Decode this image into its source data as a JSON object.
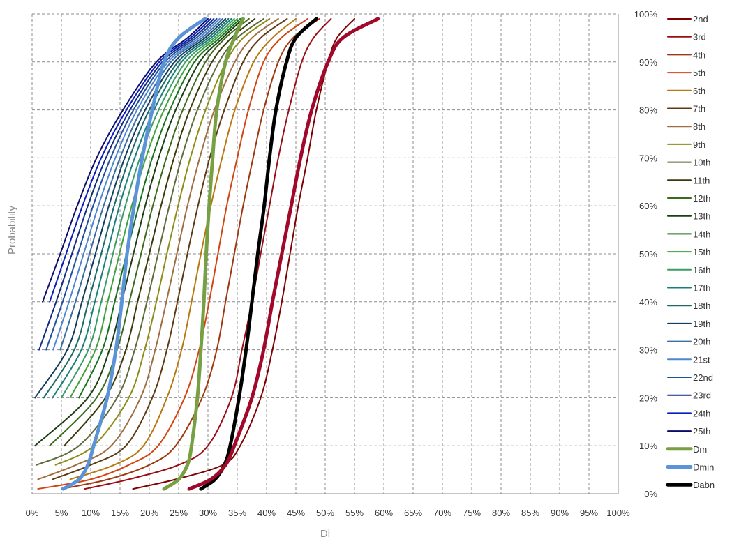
{
  "chart_data": {
    "type": "line",
    "title": "",
    "xlabel": "Di",
    "ylabel": "Probability",
    "xlim": [
      0,
      100
    ],
    "ylim": [
      0,
      100
    ],
    "x_unit": "%",
    "y_unit": "%",
    "x_ticks": [
      "0%",
      "5%",
      "10%",
      "15%",
      "20%",
      "25%",
      "30%",
      "35%",
      "40%",
      "45%",
      "50%",
      "55%",
      "60%",
      "65%",
      "70%",
      "75%",
      "80%",
      "85%",
      "90%",
      "95%",
      "100%"
    ],
    "y_ticks": [
      "0%",
      "10%",
      "20%",
      "30%",
      "40%",
      "50%",
      "60%",
      "70%",
      "80%",
      "90%",
      "100%"
    ],
    "y_axis_side": "right",
    "grid": true,
    "legend_position": "right",
    "y_points": [
      1,
      3,
      6,
      10,
      20,
      30,
      40,
      50,
      60,
      70,
      80,
      90,
      95,
      99
    ],
    "series": [
      {
        "name": "2nd",
        "color": "#7f0000",
        "width": 2,
        "x": [
          17.2,
          24.5,
          32.5,
          35.5,
          39.0,
          41.0,
          42.6,
          44.0,
          45.4,
          47.0,
          48.5,
          50.5,
          52.0,
          55.0
        ]
      },
      {
        "name": "3rd",
        "color": "#9a0e16",
        "width": 2,
        "x": [
          9.0,
          16.5,
          25.0,
          30.0,
          34.0,
          35.8,
          37.5,
          39.0,
          40.5,
          42.0,
          43.8,
          46.0,
          48.0,
          51.0
        ]
      },
      {
        "name": "4th",
        "color": "#a0380f",
        "width": 2,
        "x": [
          5.0,
          13.0,
          20.0,
          24.5,
          29.0,
          31.5,
          33.0,
          34.5,
          36.0,
          37.7,
          39.5,
          42.0,
          44.5,
          49.0
        ]
      },
      {
        "name": "5th",
        "color": "#d24412",
        "width": 2,
        "x": [
          1.0,
          10.0,
          16.5,
          21.5,
          26.0,
          28.5,
          30.2,
          31.7,
          33.2,
          35.0,
          36.9,
          39.5,
          42.5,
          47.0
        ]
      },
      {
        "name": "6th",
        "color": "#b9770f",
        "width": 2,
        "x": [
          0.0,
          6.5,
          14.0,
          19.0,
          23.0,
          25.5,
          27.2,
          28.8,
          30.5,
          32.4,
          34.6,
          37.8,
          41.0,
          45.0
        ]
      },
      {
        "name": "7th",
        "color": "#5e3a14",
        "width": 2,
        "x": [
          0.0,
          3.5,
          10.0,
          16.0,
          20.5,
          23.0,
          24.8,
          26.5,
          28.3,
          30.3,
          32.8,
          36.0,
          39.0,
          43.5
        ]
      },
      {
        "name": "8th",
        "color": "#a06d3f",
        "width": 2,
        "x": [
          0.0,
          1.0,
          7.5,
          13.5,
          18.5,
          21.0,
          22.9,
          24.7,
          26.5,
          28.6,
          31.1,
          34.6,
          37.5,
          42.0
        ]
      },
      {
        "name": "9th",
        "color": "#8c8c16",
        "width": 2,
        "x": [
          0.0,
          0.0,
          4.0,
          10.5,
          16.5,
          19.2,
          21.2,
          23.0,
          24.9,
          27.0,
          29.6,
          33.1,
          36.0,
          40.5
        ]
      },
      {
        "name": "10th",
        "color": "#5f6b3a",
        "width": 2,
        "x": [
          0.0,
          0.0,
          0.8,
          8.0,
          14.5,
          17.5,
          19.6,
          21.5,
          23.4,
          25.5,
          28.2,
          31.9,
          35.0,
          39.5
        ]
      },
      {
        "name": "11th",
        "color": "#3b3a0a",
        "width": 2,
        "x": [
          0.0,
          0.0,
          0.0,
          5.5,
          12.5,
          16.0,
          18.0,
          20.0,
          22.0,
          24.2,
          26.9,
          30.7,
          34.0,
          38.0
        ]
      },
      {
        "name": "12th",
        "color": "#3d6b1b",
        "width": 2,
        "x": [
          0.0,
          0.0,
          0.0,
          3.0,
          11.0,
          14.5,
          16.6,
          18.6,
          20.6,
          22.9,
          25.7,
          29.6,
          33.0,
          37.0
        ]
      },
      {
        "name": "13th",
        "color": "#1e3d12",
        "width": 2,
        "x": [
          0.0,
          0.0,
          0.0,
          0.5,
          9.5,
          13.2,
          15.3,
          17.3,
          19.3,
          21.6,
          24.5,
          28.6,
          32.5,
          36.0
        ]
      },
      {
        "name": "14th",
        "color": "#16721c",
        "width": 2,
        "x": [
          0.0,
          0.0,
          0.0,
          0.0,
          8.0,
          12.0,
          14.1,
          16.1,
          18.2,
          20.5,
          23.5,
          27.7,
          32.0,
          35.5
        ]
      },
      {
        "name": "15th",
        "color": "#41a13b",
        "width": 2,
        "x": [
          0.0,
          0.0,
          0.0,
          0.0,
          6.5,
          10.8,
          12.9,
          14.9,
          17.0,
          19.4,
          22.5,
          26.9,
          31.5,
          35.0
        ]
      },
      {
        "name": "16th",
        "color": "#399c66",
        "width": 2,
        "x": [
          0.0,
          0.0,
          0.0,
          0.0,
          5.0,
          9.6,
          11.8,
          13.8,
          15.9,
          18.4,
          21.6,
          26.2,
          31.0,
          34.5
        ]
      },
      {
        "name": "17th",
        "color": "#178078",
        "width": 2,
        "x": [
          0.0,
          0.0,
          0.0,
          0.0,
          3.5,
          8.4,
          10.7,
          12.8,
          14.9,
          17.5,
          20.8,
          25.5,
          30.5,
          34.0
        ]
      },
      {
        "name": "18th",
        "color": "#1d6a68",
        "width": 2,
        "x": [
          0.0,
          0.0,
          0.0,
          0.0,
          2.0,
          7.2,
          9.6,
          11.8,
          14.0,
          16.6,
          20.0,
          24.9,
          30.0,
          33.5
        ]
      },
      {
        "name": "19th",
        "color": "#123d5e",
        "width": 2,
        "x": [
          0.0,
          0.0,
          0.0,
          0.0,
          0.5,
          6.0,
          8.5,
          10.8,
          13.1,
          15.8,
          19.3,
          24.3,
          29.5,
          33.0
        ]
      },
      {
        "name": "20th",
        "color": "#3a6ea5",
        "width": 2,
        "x": [
          0.0,
          0.0,
          0.0,
          0.0,
          0.0,
          4.8,
          7.4,
          9.8,
          12.2,
          15.0,
          18.6,
          23.7,
          29.0,
          32.5
        ]
      },
      {
        "name": "21st",
        "color": "#4f86d2",
        "width": 2,
        "x": [
          0.0,
          0.0,
          0.0,
          0.0,
          0.0,
          3.6,
          6.3,
          8.8,
          11.3,
          14.2,
          17.9,
          23.2,
          28.5,
          32.0
        ]
      },
      {
        "name": "22nd",
        "color": "#1f4f9e",
        "width": 2,
        "x": [
          0.0,
          0.0,
          0.0,
          0.0,
          0.0,
          2.4,
          5.2,
          7.8,
          10.4,
          13.4,
          17.3,
          22.7,
          28.0,
          31.5
        ]
      },
      {
        "name": "23rd",
        "color": "#142a80",
        "width": 2,
        "x": [
          0.0,
          0.0,
          0.0,
          0.0,
          0.0,
          1.2,
          4.1,
          6.8,
          9.5,
          12.6,
          16.7,
          22.2,
          27.5,
          31.0
        ]
      },
      {
        "name": "24th",
        "color": "#0a1ec0",
        "width": 2,
        "x": [
          0.0,
          0.0,
          0.0,
          0.0,
          0.0,
          0.0,
          3.0,
          5.8,
          8.6,
          11.8,
          16.1,
          21.7,
          27.0,
          30.5
        ]
      },
      {
        "name": "25th",
        "color": "#0c0c6c",
        "width": 2,
        "x": [
          0.0,
          0.0,
          0.0,
          0.0,
          0.0,
          0.0,
          1.8,
          4.8,
          7.7,
          11.0,
          15.5,
          21.2,
          26.5,
          30.0
        ]
      },
      {
        "name": "Dm",
        "color": "#77a043",
        "width": 5,
        "x": [
          22.5,
          25.0,
          26.5,
          27.2,
          28.2,
          28.8,
          29.3,
          29.7,
          30.2,
          30.8,
          31.5,
          33.0,
          34.5,
          36.0
        ]
      },
      {
        "name": "Dmin",
        "color": "#5b93d8",
        "width": 5,
        "x": [
          5.3,
          8.0,
          9.5,
          10.5,
          12.8,
          14.3,
          15.3,
          16.2,
          17.4,
          18.8,
          20.5,
          22.5,
          25.0,
          29.5
        ]
      },
      {
        "name": "Dabn",
        "color": "#000000",
        "width": 5,
        "x": [
          28.8,
          31.2,
          32.8,
          33.8,
          35.3,
          36.5,
          37.5,
          38.5,
          39.6,
          40.5,
          41.6,
          43.4,
          45.0,
          48.5
        ]
      },
      {
        "name": "",
        "color": "#a1082a",
        "width": 5,
        "x": [
          26.8,
          30.5,
          33.0,
          34.5,
          37.5,
          39.5,
          41.0,
          42.6,
          44.2,
          45.8,
          47.7,
          50.5,
          53.0,
          59.0
        ]
      }
    ]
  }
}
